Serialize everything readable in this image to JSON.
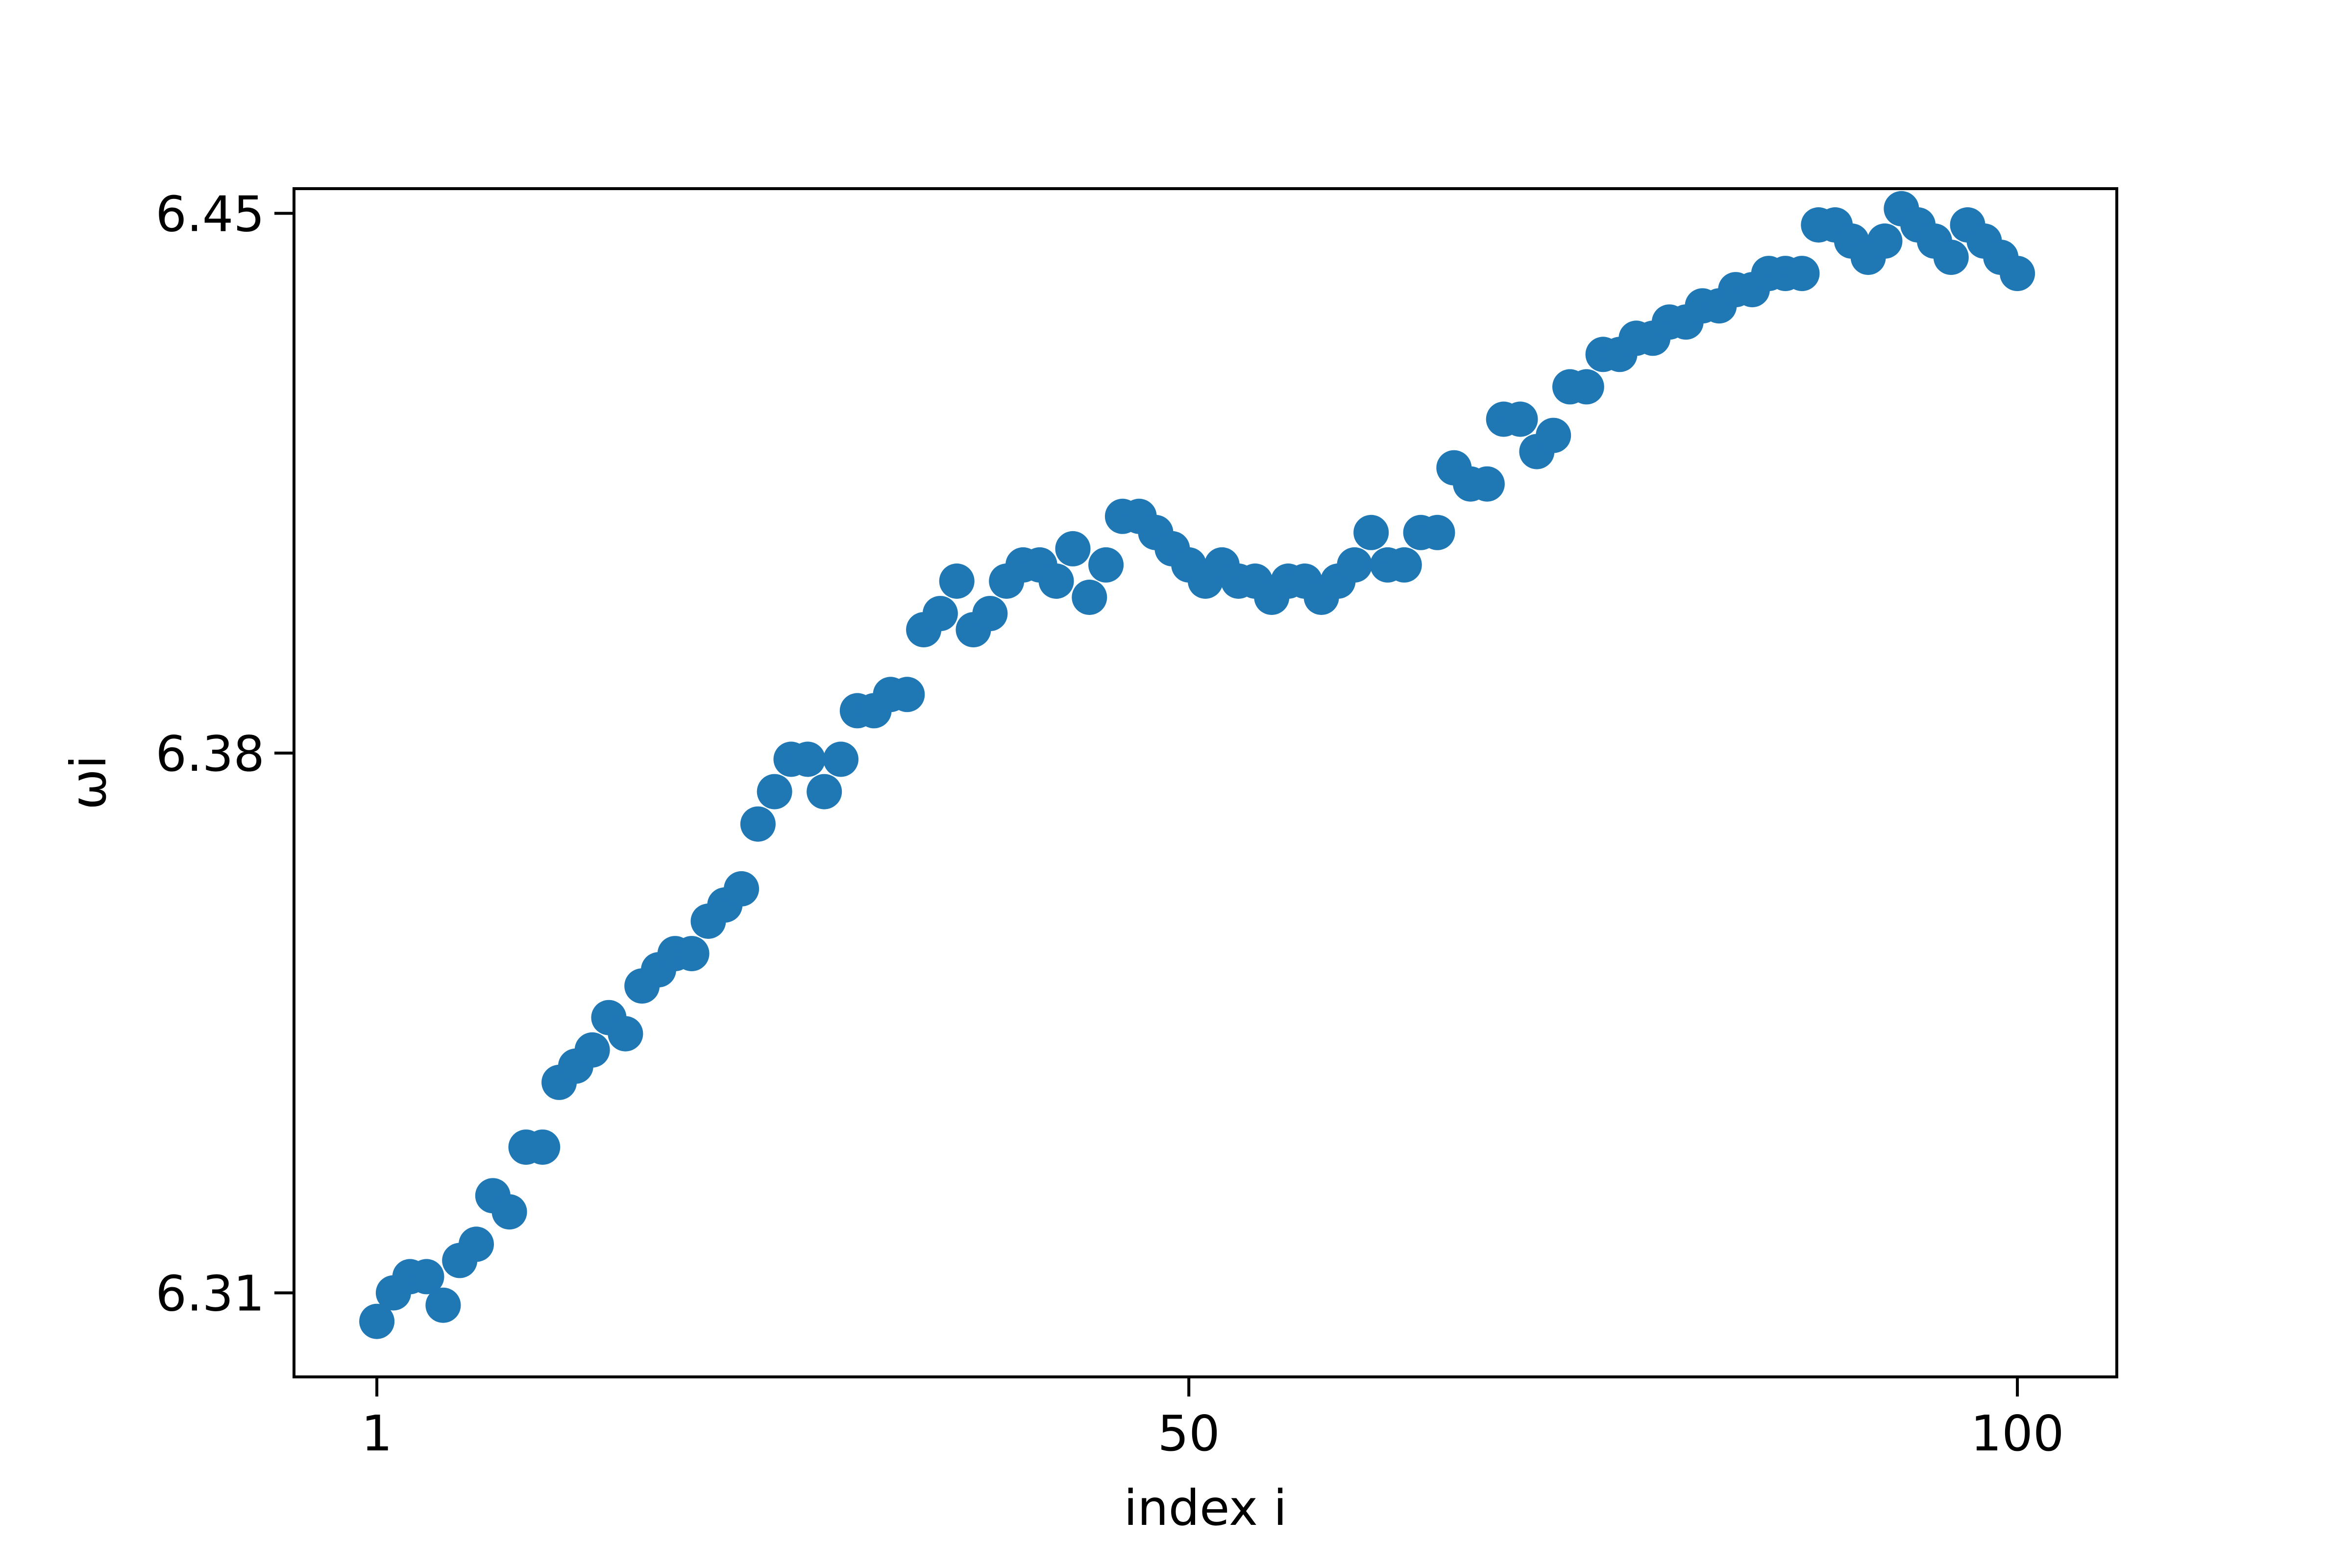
{
  "chart_data": {
    "type": "scatter",
    "title": "",
    "xlabel": "index i",
    "ylabel": "ωi",
    "xlim": [
      -4,
      106
    ],
    "ylim": [
      6.2991,
      6.4532
    ],
    "xticks": [
      1,
      50,
      100
    ],
    "xtick_labels": [
      "1",
      "50",
      "100"
    ],
    "yticks": [
      6.31,
      6.38,
      6.45
    ],
    "ytick_labels": [
      "6.31",
      "6.38",
      "6.45"
    ],
    "grid": false,
    "legend": "none",
    "marker_color": "#1f77b4",
    "points": [
      [
        1,
        6.3063
      ],
      [
        2,
        6.31
      ],
      [
        3,
        6.3121
      ],
      [
        4,
        6.3121
      ],
      [
        5,
        6.3084
      ],
      [
        6,
        6.3142
      ],
      [
        7,
        6.3163
      ],
      [
        8,
        6.3226
      ],
      [
        9,
        6.3205
      ],
      [
        10,
        6.3289
      ],
      [
        11,
        6.3289
      ],
      [
        12,
        6.3373
      ],
      [
        13,
        6.3394
      ],
      [
        14,
        6.3415
      ],
      [
        15,
        6.3457
      ],
      [
        16,
        6.3436
      ],
      [
        17,
        6.3498
      ],
      [
        18,
        6.3519
      ],
      [
        19,
        6.354
      ],
      [
        20,
        6.354
      ],
      [
        21,
        6.3582
      ],
      [
        22,
        6.3603
      ],
      [
        23,
        6.3624
      ],
      [
        24,
        6.3708
      ],
      [
        25,
        6.375
      ],
      [
        26,
        6.3792
      ],
      [
        27,
        6.3792
      ],
      [
        28,
        6.375
      ],
      [
        29,
        6.3792
      ],
      [
        30,
        6.3855
      ],
      [
        31,
        6.3855
      ],
      [
        32,
        6.3876
      ],
      [
        33,
        6.3876
      ],
      [
        34,
        6.396
      ],
      [
        35,
        6.3981
      ],
      [
        36,
        6.4023
      ],
      [
        37,
        6.396
      ],
      [
        38,
        6.3981
      ],
      [
        39,
        6.4023
      ],
      [
        40,
        6.4044
      ],
      [
        41,
        6.4044
      ],
      [
        42,
        6.4023
      ],
      [
        43,
        6.4065
      ],
      [
        44,
        6.4002
      ],
      [
        45,
        6.4044
      ],
      [
        46,
        6.4107
      ],
      [
        47,
        6.4107
      ],
      [
        48,
        6.4086
      ],
      [
        49,
        6.4065
      ],
      [
        50,
        6.4044
      ],
      [
        51,
        6.4023
      ],
      [
        52,
        6.4044
      ],
      [
        53,
        6.4023
      ],
      [
        54,
        6.4023
      ],
      [
        55,
        6.4002
      ],
      [
        56,
        6.4023
      ],
      [
        57,
        6.4023
      ],
      [
        58,
        6.4002
      ],
      [
        59,
        6.4023
      ],
      [
        60,
        6.4044
      ],
      [
        61,
        6.4086
      ],
      [
        62,
        6.4044
      ],
      [
        63,
        6.4044
      ],
      [
        64,
        6.4086
      ],
      [
        65,
        6.4086
      ],
      [
        66,
        6.417
      ],
      [
        67,
        6.4149
      ],
      [
        68,
        6.4149
      ],
      [
        69,
        6.4233
      ],
      [
        70,
        6.4233
      ],
      [
        71,
        6.4191
      ],
      [
        72,
        6.4212
      ],
      [
        73,
        6.4275
      ],
      [
        74,
        6.4275
      ],
      [
        75,
        6.4317
      ],
      [
        76,
        6.4317
      ],
      [
        77,
        6.4338
      ],
      [
        78,
        6.4338
      ],
      [
        79,
        6.4359
      ],
      [
        80,
        6.4359
      ],
      [
        81,
        6.438
      ],
      [
        82,
        6.438
      ],
      [
        83,
        6.4401
      ],
      [
        84,
        6.4401
      ],
      [
        85,
        6.4422
      ],
      [
        86,
        6.4422
      ],
      [
        87,
        6.4422
      ],
      [
        88,
        6.4485
      ],
      [
        89,
        6.4485
      ],
      [
        90,
        6.4464
      ],
      [
        91,
        6.4443
      ],
      [
        92,
        6.4464
      ],
      [
        93,
        6.4506
      ],
      [
        94,
        6.4485
      ],
      [
        95,
        6.4464
      ],
      [
        96,
        6.4443
      ],
      [
        97,
        6.4485
      ],
      [
        98,
        6.4464
      ],
      [
        99,
        6.4443
      ],
      [
        100,
        6.4422
      ]
    ]
  }
}
